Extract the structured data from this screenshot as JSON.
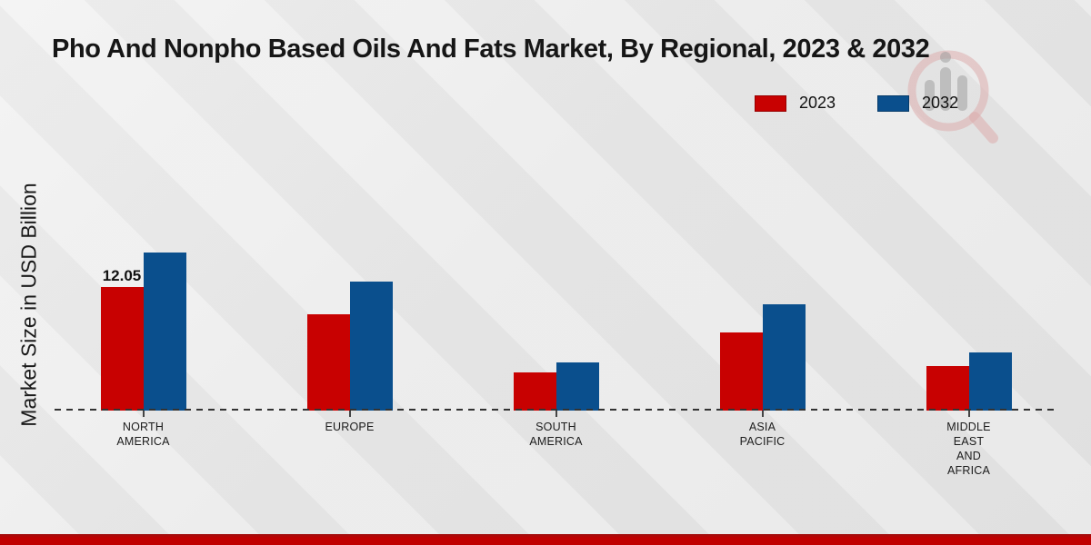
{
  "page": {
    "title": "Pho And Nonpho Based Oils And Fats Market, By Regional, 2023 & 2032",
    "bottom_strip_color": "#c00000",
    "background_color": "#ebebeb"
  },
  "legend": {
    "position": "top-right",
    "items": [
      {
        "label": "2023",
        "color": "#c80101"
      },
      {
        "label": "2032",
        "color": "#0a4f8d"
      }
    ]
  },
  "watermark": {
    "name": "magnifier-bar-chart-logo",
    "ring_color": "#ddadad",
    "bars_color": "#9a9a9a"
  },
  "chart_data": {
    "type": "bar",
    "title": "Pho And Nonpho Based Oils And Fats Market, By Regional, 2023 & 2032",
    "xlabel": "",
    "ylabel": "Market Size in USD Billion",
    "categories": [
      "North America",
      "Europe",
      "South America",
      "Asia Pacific",
      "Middle East and Africa"
    ],
    "category_label_lines": [
      [
        "NORTH",
        "AMERICA"
      ],
      [
        "EUROPE"
      ],
      [
        "SOUTH",
        "AMERICA"
      ],
      [
        "ASIA",
        "PACIFIC"
      ],
      [
        "MIDDLE",
        "EAST",
        "AND",
        "AFRICA"
      ]
    ],
    "series": [
      {
        "name": "2023",
        "color": "#c80101",
        "values": [
          12.05,
          9.4,
          3.7,
          7.6,
          4.3
        ]
      },
      {
        "name": "2032",
        "color": "#0a4f8d",
        "values": [
          15.4,
          12.6,
          4.7,
          10.4,
          5.7
        ]
      }
    ],
    "value_labels": [
      {
        "series": "2023",
        "category": "North America",
        "text": "12.05"
      }
    ],
    "ylim": [
      0,
      16
    ],
    "grid": false,
    "axis_style": "dashed-baseline",
    "legend_position": "top-right"
  }
}
